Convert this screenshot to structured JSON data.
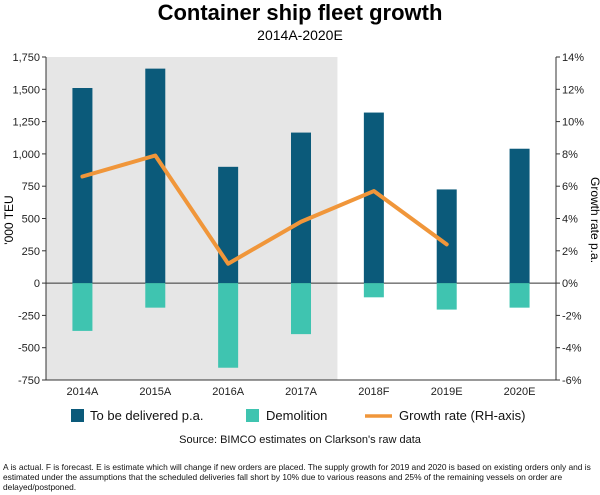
{
  "chart_data": {
    "type": "bar",
    "title": "Container ship fleet growth",
    "subtitle": "2014A-2020E",
    "categories": [
      "2014A",
      "2015A",
      "2016A",
      "2017A",
      "2018F",
      "2019E",
      "2020E"
    ],
    "series": [
      {
        "name": "To be delivered p.a.",
        "type": "bar",
        "axis": "left",
        "color": "#0b5a7a",
        "values": [
          1510,
          1660,
          900,
          1165,
          1320,
          725,
          1040
        ]
      },
      {
        "name": "Demolition",
        "type": "bar",
        "axis": "left",
        "color": "#3fc4b0",
        "values": [
          -370,
          -190,
          -655,
          -395,
          -110,
          -205,
          -190
        ]
      },
      {
        "name": "Growth rate (RH-axis)",
        "type": "line",
        "axis": "right",
        "color": "#f0963a",
        "values": [
          6.6,
          7.9,
          1.2,
          3.8,
          5.7,
          2.4,
          null
        ]
      }
    ],
    "ylabel": "'000 TEU",
    "y2label": "Growth rate p.a.",
    "ylim": [
      -750,
      1750
    ],
    "y2lim": [
      -6,
      14
    ],
    "yticks": [
      "1,750",
      "1,500",
      "1,250",
      "1,000",
      "750",
      "500",
      "250",
      "0",
      "-250",
      "-500",
      "-750"
    ],
    "y2ticks": [
      "14%",
      "12%",
      "10%",
      "8%",
      "6%",
      "4%",
      "2%",
      "0%",
      "-2%",
      "-4%",
      "-6%"
    ],
    "shaded_categories": [
      "2014A",
      "2015A",
      "2016A",
      "2017A"
    ],
    "shade_color": "#e6e6e6",
    "legend_position": "bottom",
    "source": "Source: BIMCO estimates on Clarkson's raw data"
  },
  "footnote": "A is actual. F is forecast. E is estimate which will change if new orders are placed. The supply growth for 2019 and 2020 is based on existing orders only and is estimated under the assumptions that the scheduled deliveries fall short by 10% due to various reasons and 25% of the remaining vessels on order are delayed/postponed."
}
